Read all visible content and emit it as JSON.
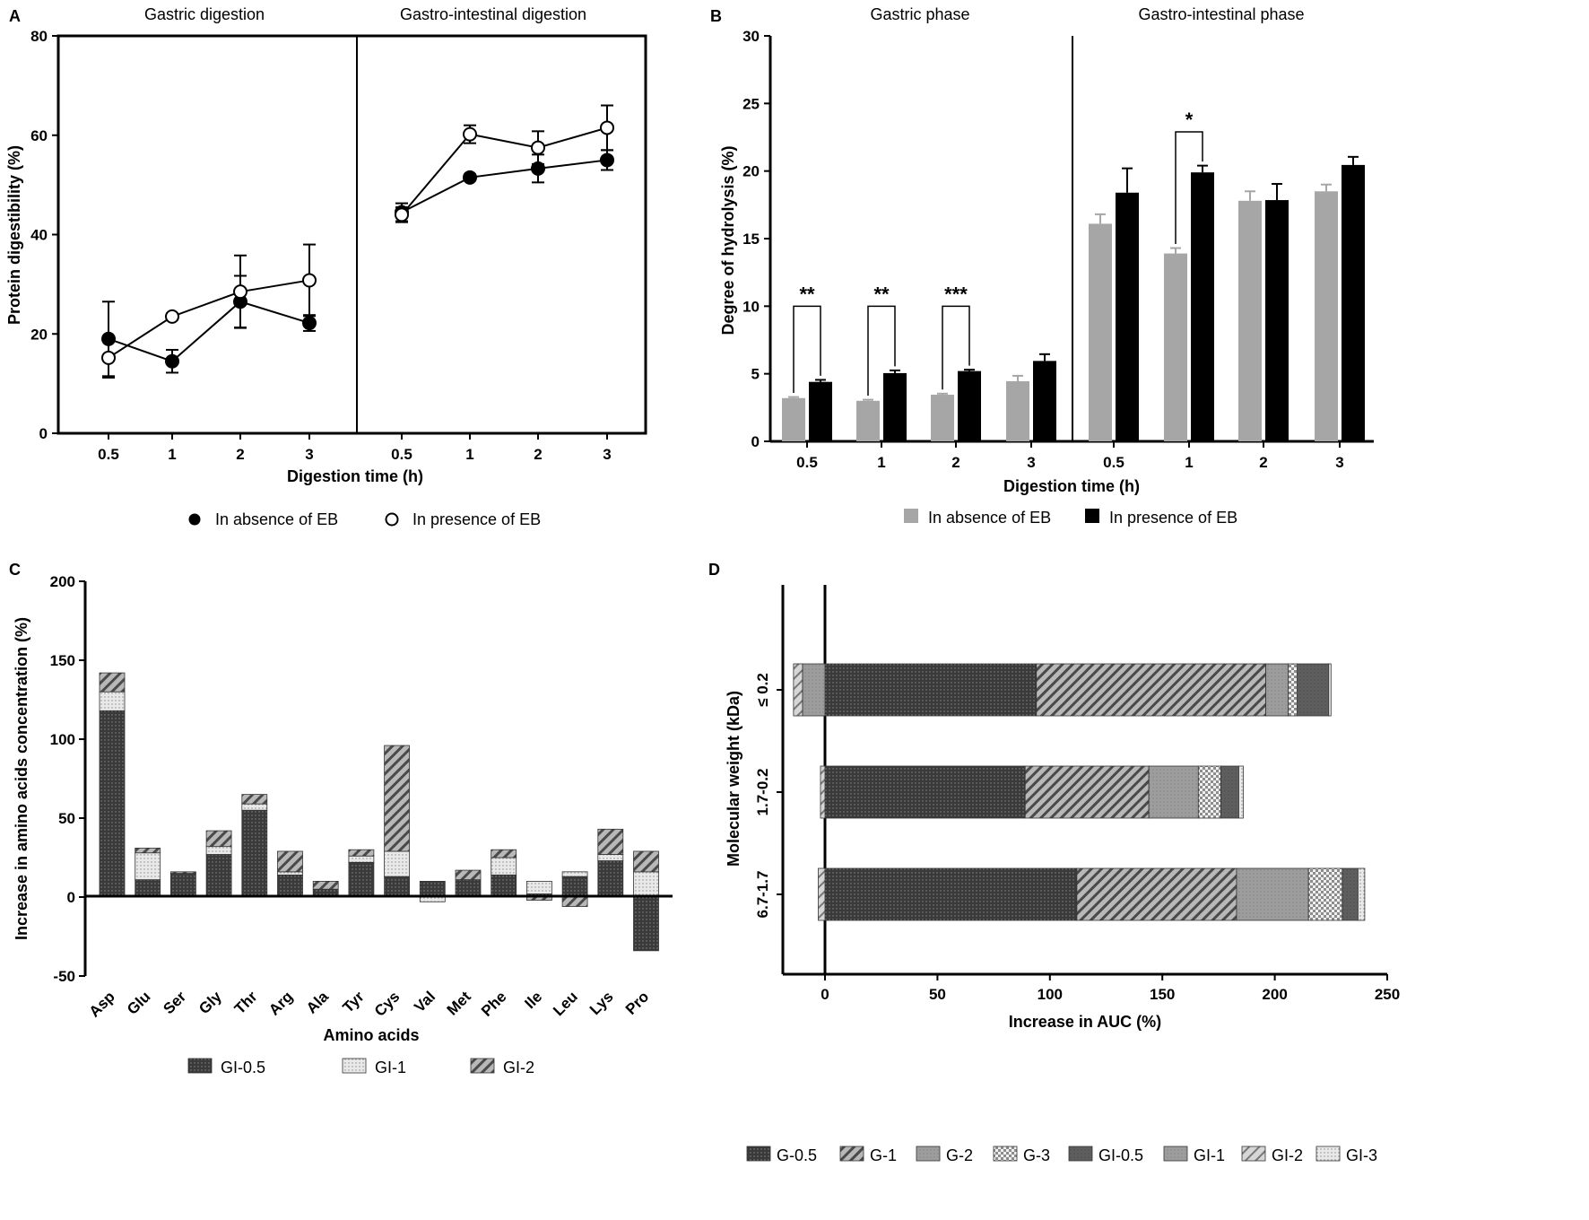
{
  "colors": {
    "gray": "#a6a6a6",
    "black": "#000000",
    "dark": "#3f3f3f"
  },
  "chart_data": [
    {
      "panel": "A",
      "type": "line",
      "panels": [
        "Gastric digestion",
        "Gastro-intestinal digestion"
      ],
      "categories": [
        "0.5",
        "1",
        "2",
        "3"
      ],
      "series": [
        {
          "name": "In absence of EB",
          "marker": "filled-circle",
          "values": [
            [
              19,
              14.5,
              26.5,
              22.2
            ],
            [
              44.5,
              51.5,
              53.3,
              55
            ]
          ],
          "errors": [
            [
              7.5,
              2.3,
              5.2,
              1.6
            ],
            [
              1.8,
              0.6,
              2.8,
              2
            ]
          ]
        },
        {
          "name": "In presence of EB",
          "marker": "open-circle",
          "values": [
            [
              15.2,
              23.5,
              28.5,
              30.8
            ],
            [
              44,
              60.2,
              57.5,
              61.5
            ]
          ],
          "errors": [
            [
              4,
              0.6,
              7.3,
              7.2
            ],
            [
              1.5,
              1.8,
              3.3,
              4.5
            ]
          ]
        }
      ],
      "ylabel": "Protein digestibility (%)",
      "xlabel": "Digestion time (h)",
      "yticks": [
        "0",
        "20",
        "40",
        "60",
        "80"
      ],
      "ylim": [
        0,
        80
      ]
    },
    {
      "panel": "B",
      "type": "bar",
      "panels": [
        "Gastric phase",
        "Gastro-intestinal phase"
      ],
      "categories": [
        "0.5",
        "1",
        "2",
        "3"
      ],
      "series": [
        {
          "name": "In absence of EB",
          "color": "#a6a6a6",
          "values": [
            [
              3.2,
              3.0,
              3.45,
              4.45
            ],
            [
              16.1,
              13.9,
              17.8,
              18.5
            ]
          ],
          "errors": [
            [
              0.08,
              0.08,
              0.08,
              0.4
            ],
            [
              0.7,
              0.4,
              0.7,
              0.5
            ]
          ]
        },
        {
          "name": "In presence of EB",
          "color": "#000000",
          "values": [
            [
              4.4,
              5.05,
              5.2,
              5.95
            ],
            [
              18.4,
              19.9,
              17.85,
              20.45
            ]
          ],
          "errors": [
            [
              0.15,
              0.2,
              0.1,
              0.5
            ],
            [
              1.8,
              0.5,
              1.2,
              0.6
            ]
          ]
        }
      ],
      "significance": [
        {
          "group": "Gastric phase",
          "category": "0.5",
          "label": "**"
        },
        {
          "group": "Gastric phase",
          "category": "1",
          "label": "**"
        },
        {
          "group": "Gastric phase",
          "category": "2",
          "label": "***"
        },
        {
          "group": "Gastro-intestinal phase",
          "category": "1",
          "label": "*"
        }
      ],
      "ylabel": "Degree of hydrolysis (%)",
      "xlabel": "Digestion time (h)",
      "yticks": [
        "0",
        "5",
        "10",
        "15",
        "20",
        "25",
        "30"
      ],
      "ylim": [
        0,
        30
      ]
    },
    {
      "panel": "C",
      "type": "bar",
      "stacked": true,
      "categories": [
        "Asp",
        "Glu",
        "Ser",
        "Gly",
        "Thr",
        "Arg",
        "Ala",
        "Tyr",
        "Cys",
        "Val",
        "Met",
        "Phe",
        "Ile",
        "Leu",
        "Lys",
        "Pro"
      ],
      "series": [
        {
          "name": "GI-0.5",
          "pattern": "dark-dots",
          "values": [
            118,
            11,
            15,
            27,
            55,
            14,
            5,
            22,
            13,
            10,
            11,
            14,
            2,
            13,
            23,
            -34
          ]
        },
        {
          "name": "GI-1",
          "pattern": "light-dots",
          "values": [
            12,
            17,
            0,
            5,
            4,
            2,
            0,
            4,
            16,
            -3,
            0,
            11,
            8,
            3,
            4,
            16
          ]
        },
        {
          "name": "GI-2",
          "pattern": "hatch",
          "values": [
            12,
            3,
            1,
            10,
            6,
            13,
            5,
            4,
            67,
            0,
            6,
            5,
            -2,
            -6,
            16,
            13
          ]
        }
      ],
      "ylabel": "Increase in amino acids concentration (%)",
      "xlabel": "Amino acids",
      "yticks": [
        "-50",
        "0",
        "50",
        "100",
        "150",
        "200"
      ],
      "ylim": [
        -50,
        200
      ]
    },
    {
      "panel": "D",
      "type": "bar",
      "orientation": "horizontal",
      "stacked": true,
      "categories": [
        "≤ 0.2",
        "1.7-0.2",
        "6.7-1.7"
      ],
      "series": [
        {
          "name": "G-0.5",
          "pattern": "dark-dots",
          "values": [
            94,
            89,
            112
          ]
        },
        {
          "name": "G-1",
          "pattern": "hatch",
          "values": [
            102,
            55,
            71
          ]
        },
        {
          "name": "G-2",
          "pattern": "gray",
          "values": [
            10,
            22,
            32
          ]
        },
        {
          "name": "G-3",
          "pattern": "checker",
          "values": [
            4,
            10,
            15
          ]
        },
        {
          "name": "GI-0.5",
          "pattern": "dark-gray",
          "values": [
            14,
            8,
            7
          ]
        },
        {
          "name": "GI-1",
          "pattern": "gray",
          "values": [
            -10,
            0,
            0
          ]
        },
        {
          "name": "GI-2",
          "pattern": "hatch-light",
          "values": [
            -4,
            -2,
            -3
          ]
        },
        {
          "name": "GI-3",
          "pattern": "light-dots",
          "values": [
            1,
            2,
            3
          ]
        }
      ],
      "ylabel": "Molecular weight (kDa)",
      "xlabel": "Increase in AUC (%)",
      "xticks": [
        "0",
        "50",
        "100",
        "150",
        "200",
        "250"
      ],
      "xlim": [
        -18,
        250
      ]
    }
  ]
}
